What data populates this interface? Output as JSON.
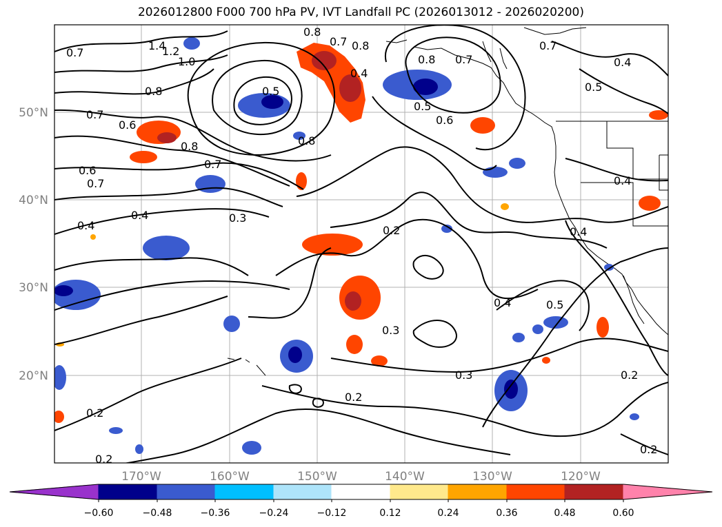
{
  "title": "2026012800 F000 700 hPa PV, IVT Landfall PC (2026013012 - 2026020200)",
  "lat_labels": [
    "50°N",
    "40°N",
    "30°N",
    "20°N"
  ],
  "lon_labels": [
    "170°W",
    "160°W",
    "150°W",
    "140°W",
    "130°W",
    "120°W"
  ],
  "colorbar": {
    "ticks": [
      "−0.60",
      "−0.48",
      "−0.36",
      "−0.24",
      "−0.12",
      "0.12",
      "0.24",
      "0.36",
      "0.48",
      "0.60"
    ],
    "colors": [
      "#9932CC",
      "#00008B",
      "#3A5BCF",
      "#00BFFF",
      "#AEE4FA",
      "#FFFFFF",
      "#FFE98C",
      "#FFA500",
      "#FF4500",
      "#B22222",
      "#FF82AB"
    ]
  },
  "contour_labels": [
    "1.4",
    "1.2",
    "1.0",
    "0.8",
    "0.7",
    "0.6",
    "0.7",
    "0.8",
    "0.4",
    "0.5",
    "0.8",
    "0.7",
    "0.8",
    "0.7",
    "0.5",
    "0.6",
    "0.8",
    "0.7",
    "0.4",
    "0.6",
    "0.7",
    "0.8",
    "0.3",
    "0.2",
    "0.4",
    "0.4",
    "0.4",
    "0.4",
    "0.3",
    "0.5",
    "0.3",
    "0.2",
    "0.2",
    "0.2",
    "0.2",
    "0.2",
    "0.7",
    "0.4",
    "0.5"
  ]
}
